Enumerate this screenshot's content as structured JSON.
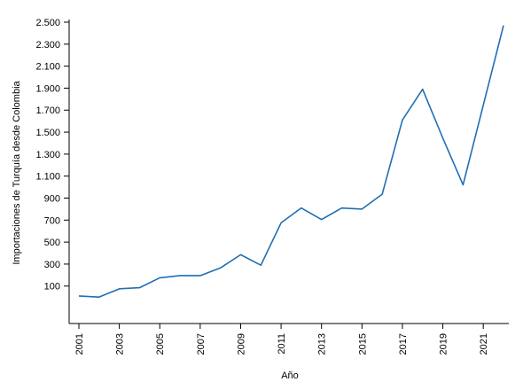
{
  "chart_data": {
    "type": "line",
    "title": "",
    "xlabel": "Año",
    "ylabel": "Importaciones de Turquía desde Colombia",
    "x": [
      2001,
      2002,
      2003,
      2004,
      2005,
      2006,
      2007,
      2008,
      2009,
      2010,
      2011,
      2012,
      2013,
      2014,
      2015,
      2016,
      2017,
      2018,
      2019,
      2020,
      2021,
      2022
    ],
    "series": [
      {
        "values": [
          10,
          0,
          75,
          85,
          175,
          195,
          195,
          265,
          385,
          290,
          675,
          810,
          705,
          810,
          800,
          935,
          1610,
          1890,
          1445,
          1020,
          1745,
          2470
        ],
        "color": "#1f6fb4"
      }
    ],
    "xticks": [
      "2001",
      "2003",
      "2005",
      "2007",
      "2009",
      "2011",
      "2013",
      "2015",
      "2017",
      "2019",
      "2021"
    ],
    "yticks": [
      "100",
      "300",
      "500",
      "700",
      "900",
      "1.100",
      "1.300",
      "1.500",
      "1.700",
      "1.900",
      "2.100",
      "2.300",
      "2.500"
    ],
    "xlim": [
      2001,
      2022
    ],
    "ylim": [
      -160,
      2500
    ],
    "grid": false,
    "legend": "none"
  }
}
